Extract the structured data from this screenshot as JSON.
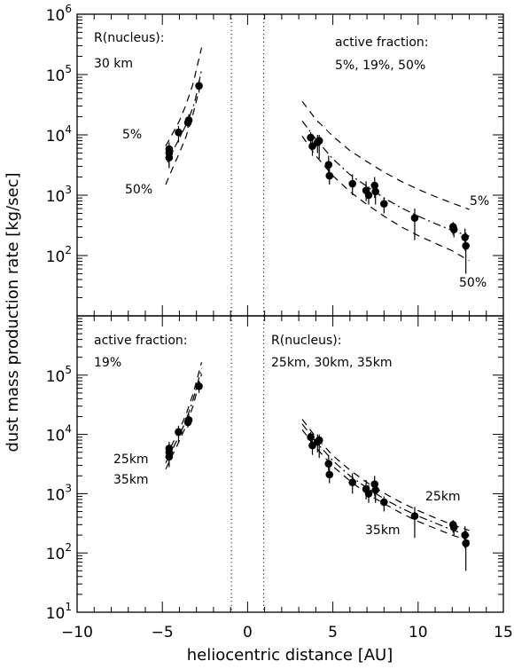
{
  "chart_data": {
    "type": "scatter",
    "shared_xaxis": {
      "label": "heliocentric distance [AU]",
      "lim": [
        -10,
        15
      ],
      "ticks": [
        -10,
        -5,
        0,
        5,
        10,
        15
      ]
    },
    "shared_ylabel": "dust mass production rate [kg/sec]",
    "vertical_markers": [
      -0.95,
      0.95
    ],
    "observations": {
      "inbound": [
        {
          "x": -4.6,
          "y": 5800,
          "lo": 3000,
          "hi": 7500
        },
        {
          "x": -4.6,
          "y": 4200,
          "lo": 2800,
          "hi": 5500
        },
        {
          "x": -4.6,
          "y": 5000,
          "lo": 3500,
          "hi": 6500
        },
        {
          "x": -4.05,
          "y": 11000,
          "lo": 7500,
          "hi": 14000
        },
        {
          "x": -3.5,
          "y": 16000,
          "lo": 13000,
          "hi": 20000
        },
        {
          "x": -3.45,
          "y": 17500,
          "lo": 14000,
          "hi": 22000
        },
        {
          "x": -2.85,
          "y": 65000,
          "lo": 50000,
          "hi": 80000
        }
      ],
      "outbound": [
        {
          "x": 3.7,
          "y": 9000,
          "lo": 6500,
          "hi": 11000
        },
        {
          "x": 3.8,
          "y": 6500,
          "lo": 4500,
          "hi": 9000
        },
        {
          "x": 4.1,
          "y": 7500,
          "lo": 5000,
          "hi": 10000
        },
        {
          "x": 4.2,
          "y": 8000,
          "lo": 4000,
          "hi": 10000
        },
        {
          "x": 4.75,
          "y": 3200,
          "lo": 2000,
          "hi": 4500
        },
        {
          "x": 4.8,
          "y": 2100,
          "lo": 1500,
          "hi": 3000
        },
        {
          "x": 6.15,
          "y": 1550,
          "lo": 1000,
          "hi": 2200
        },
        {
          "x": 6.95,
          "y": 1200,
          "lo": 800,
          "hi": 1700
        },
        {
          "x": 7.1,
          "y": 1000,
          "lo": 700,
          "hi": 1400
        },
        {
          "x": 7.45,
          "y": 1450,
          "lo": 900,
          "hi": 2000
        },
        {
          "x": 7.5,
          "y": 1150,
          "lo": 700,
          "hi": 1600
        },
        {
          "x": 8.0,
          "y": 720,
          "lo": 500,
          "hi": 900
        },
        {
          "x": 9.8,
          "y": 420,
          "lo": 180,
          "hi": 600
        },
        {
          "x": 12.05,
          "y": 300,
          "lo": 220,
          "hi": 360
        },
        {
          "x": 12.1,
          "y": 270,
          "lo": 200,
          "hi": 340
        },
        {
          "x": 12.75,
          "y": 200,
          "lo": 120,
          "hi": 280
        },
        {
          "x": 12.8,
          "y": 145,
          "lo": 50,
          "hi": 240
        }
      ]
    },
    "panels": [
      {
        "ylim": [
          10,
          1000000
        ],
        "yscale": "log",
        "ytick_exponents": [
          2,
          3,
          4,
          5,
          6
        ],
        "annotations": [
          {
            "name": "nucleus-label",
            "text": "R(nucleus):"
          },
          {
            "name": "nucleus-value",
            "text": "30 km"
          },
          {
            "name": "fraction-label",
            "text": "active fraction:"
          },
          {
            "name": "fraction-values",
            "text": "5%, 19%, 50%"
          },
          {
            "name": "curve-label-5-inbound",
            "text": "5%"
          },
          {
            "name": "curve-label-50-inbound",
            "text": "50%"
          },
          {
            "name": "curve-label-5-outbound",
            "text": "5%"
          },
          {
            "name": "curve-label-50-outbound",
            "text": "50%"
          }
        ],
        "curves": [
          {
            "name": "5%",
            "style": "dashed",
            "inbound": {
              "x": [
                -4.8,
                -4.4,
                -4.0,
                -3.6,
                -3.2,
                -2.7
              ],
              "y": [
                6500,
                10500,
                17000,
                32000,
                70000,
                280000
              ]
            },
            "outbound": {
              "x": [
                3.2,
                4,
                5,
                6,
                7,
                8,
                9,
                10,
                11,
                12,
                13
              ],
              "y": [
                36000,
                18000,
                9500,
                5500,
                3600,
                2400,
                1700,
                1250,
                950,
                740,
                580
              ]
            }
          },
          {
            "name": "19%",
            "style": "dashdot",
            "inbound": {
              "x": [
                -4.7,
                -4.3,
                -3.9,
                -3.5,
                -3.1,
                -2.7
              ],
              "y": [
                3500,
                6000,
                10000,
                17000,
                35000,
                120000
              ]
            },
            "outbound": {
              "x": [
                3.2,
                4,
                5,
                6,
                7,
                8,
                9,
                10,
                11,
                12,
                13
              ],
              "y": [
                17000,
                8500,
                4000,
                2200,
                1400,
                900,
                620,
                450,
                340,
                260,
                210
              ]
            }
          },
          {
            "name": "50%",
            "style": "dashed",
            "inbound": {
              "x": [
                -4.8,
                -4.4,
                -4.0,
                -3.6,
                -3.2,
                -2.7
              ],
              "y": [
                1500,
                2800,
                5000,
                9500,
                22000,
                80000
              ]
            },
            "outbound": {
              "x": [
                3.2,
                4,
                5,
                6,
                7,
                8,
                9,
                10,
                11,
                12,
                13
              ],
              "y": [
                9500,
                4500,
                2100,
                1150,
                700,
                450,
                300,
                215,
                160,
                120,
                82
              ]
            }
          }
        ]
      },
      {
        "ylim": [
          10,
          1000000
        ],
        "yscale": "log",
        "ytick_exponents": [
          1,
          2,
          3,
          4,
          5
        ],
        "annotations": [
          {
            "name": "fraction-label",
            "text": "active fraction:"
          },
          {
            "name": "fraction-value",
            "text": "19%"
          },
          {
            "name": "nucleus-label",
            "text": "R(nucleus):"
          },
          {
            "name": "nucleus-values",
            "text": "25km, 30km, 35km"
          },
          {
            "name": "curve-label-25-inbound",
            "text": "25km"
          },
          {
            "name": "curve-label-35-inbound",
            "text": "35km"
          },
          {
            "name": "curve-label-25-outbound",
            "text": "25km"
          },
          {
            "name": "curve-label-35-outbound",
            "text": "35km"
          }
        ],
        "curves": [
          {
            "name": "25km",
            "style": "dashed",
            "inbound": {
              "x": [
                -4.8,
                -4.4,
                -4.0,
                -3.6,
                -3.2,
                -2.7
              ],
              "y": [
                2600,
                4500,
                7800,
                14000,
                30000,
                105000
              ]
            },
            "outbound": {
              "x": [
                3.2,
                4,
                5,
                6,
                7,
                8,
                9,
                10,
                11,
                12,
                13
              ],
              "y": [
                12000,
                6000,
                2900,
                1650,
                1000,
                680,
                470,
                340,
                260,
                200,
                160
              ]
            }
          },
          {
            "name": "30km",
            "style": "dashdot",
            "inbound": {
              "x": [
                -4.8,
                -4.4,
                -4.0,
                -3.6,
                -3.2,
                -2.7
              ],
              "y": [
                3300,
                5600,
                9700,
                17500,
                38000,
                130000
              ]
            },
            "outbound": {
              "x": [
                3.2,
                4,
                5,
                6,
                7,
                8,
                9,
                10,
                11,
                12,
                13
              ],
              "y": [
                15000,
                7500,
                3600,
                2000,
                1250,
                820,
                570,
                420,
                320,
                245,
                195
              ]
            }
          },
          {
            "name": "35km",
            "style": "dashed",
            "inbound": {
              "x": [
                -4.8,
                -4.4,
                -4.0,
                -3.6,
                -3.2,
                -2.7
              ],
              "y": [
                4000,
                7000,
                12000,
                22000,
                48000,
                165000
              ]
            },
            "outbound": {
              "x": [
                3.2,
                4,
                5,
                6,
                7,
                8,
                9,
                10,
                11,
                12,
                13
              ],
              "y": [
                18000,
                9000,
                4400,
                2500,
                1550,
                1020,
                710,
                520,
                390,
                300,
                240
              ]
            }
          }
        ]
      }
    ]
  }
}
